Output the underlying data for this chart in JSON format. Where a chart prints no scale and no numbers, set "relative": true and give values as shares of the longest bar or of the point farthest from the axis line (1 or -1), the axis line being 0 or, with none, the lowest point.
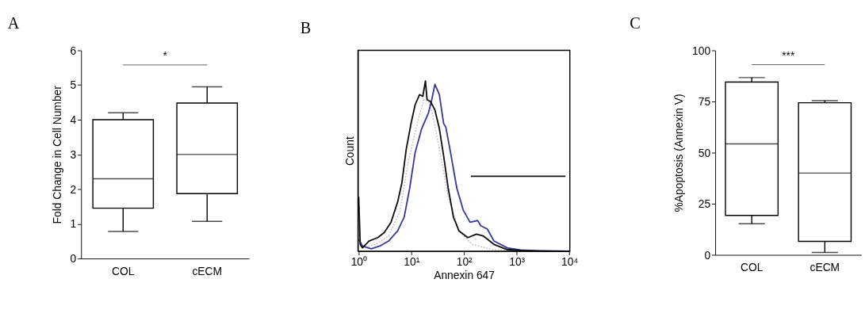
{
  "chart_data": [
    {
      "type": "box",
      "title": "A",
      "ylabel": "Fold Change in Cell Number",
      "categories": [
        "COL",
        "cECM"
      ],
      "boxes": [
        {
          "low": 0.78,
          "q1": 1.45,
          "median": 2.3,
          "q3": 4.0,
          "high": 4.2
        },
        {
          "low": 1.07,
          "q1": 1.87,
          "median": 3.0,
          "q3": 4.48,
          "high": 4.95
        }
      ],
      "ylim": [
        0,
        6
      ],
      "yticks": [
        0,
        1,
        2,
        3,
        4,
        5,
        6
      ],
      "grid": false,
      "annotations": [
        "*"
      ]
    },
    {
      "type": "line",
      "title": "B",
      "xlabel": "Annexin 647",
      "ylabel": "Count",
      "relative": true,
      "log": "x",
      "xlim": [
        0.97,
        10200
      ],
      "xticks": [
        {
          "value": 1,
          "label": "10⁰"
        },
        {
          "value": 10,
          "label": "10¹"
        },
        {
          "value": 100,
          "label": "10²"
        },
        {
          "value": 1000,
          "label": "10³"
        },
        {
          "value": 10000,
          "label": "10⁴"
        }
      ],
      "grid": false,
      "marker": "none",
      "series": [
        {
          "color": "#c8bcbc",
          "line_style": "dotted",
          "x": [
            1.18,
            2.1,
            3.7,
            6,
            8.8,
            12.9,
            17.3,
            21,
            25,
            34,
            50,
            80,
            143,
            340,
            1400,
            10000
          ],
          "values": [
            0.02,
            0.04,
            0.09,
            0.23,
            0.53,
            0.75,
            0.89,
            0.88,
            0.81,
            0.6,
            0.32,
            0.12,
            0.04,
            0.01,
            0,
            0
          ]
        },
        {
          "color": "#3a3a9a",
          "line_style": "solid",
          "x": [
            1,
            1.18,
            1.73,
            2.5,
            3.7,
            5.5,
            7.3,
            9.3,
            11.8,
            15.7,
            21,
            24,
            28,
            34,
            41,
            45,
            54,
            73,
            97,
            130,
            181,
            208,
            277,
            370,
            660,
            1170,
            2300,
            10000
          ],
          "values": [
            0.07,
            0.03,
            0.014,
            0.03,
            0.06,
            0.12,
            0.2,
            0.37,
            0.58,
            0.72,
            0.81,
            0.88,
            0.98,
            0.92,
            0.75,
            0.73,
            0.6,
            0.37,
            0.24,
            0.17,
            0.18,
            0.15,
            0.13,
            0.06,
            0.02,
            0.007,
            0.003,
            0
          ]
        },
        {
          "color": "#111111",
          "line_style": "solid",
          "x": [
            1,
            1.07,
            1.18,
            1.57,
            2.3,
            3.07,
            4.1,
            5.5,
            6.6,
            8,
            10,
            11.8,
            14.3,
            16.5,
            18.5,
            19.9,
            23,
            28,
            34,
            41,
            50,
            63,
            80,
            118,
            172,
            230,
            370,
            660,
            1400,
            3700,
            10000
          ],
          "values": [
            0.32,
            0.04,
            0.02,
            0.06,
            0.08,
            0.11,
            0.17,
            0.29,
            0.4,
            0.6,
            0.76,
            0.86,
            0.92,
            0.91,
            1,
            0.89,
            0.88,
            0.83,
            0.72,
            0.56,
            0.37,
            0.2,
            0.12,
            0.08,
            0.1,
            0.09,
            0.04,
            0.01,
            0.003,
            0,
            0
          ]
        },
        {
          "color": "#111111",
          "line_style": "solid",
          "x": [
            135,
            8400
          ],
          "values": [
            0.44,
            0.44
          ]
        }
      ]
    },
    {
      "type": "box",
      "title": "C",
      "ylabel": "%Apoptosis (Annexin V)",
      "categories": [
        "COL",
        "cECM"
      ],
      "boxes": [
        {
          "low": 15.2,
          "q1": 19.3,
          "median": 54.3,
          "q3": 84.5,
          "high": 86.7
        },
        {
          "low": 1.2,
          "q1": 6.6,
          "median": 40,
          "q3": 74.4,
          "high": 75.4
        }
      ],
      "ylim": [
        0,
        100
      ],
      "yticks": [
        0,
        25,
        50,
        75,
        100
      ],
      "grid": false,
      "annotations": [
        "***"
      ]
    }
  ]
}
